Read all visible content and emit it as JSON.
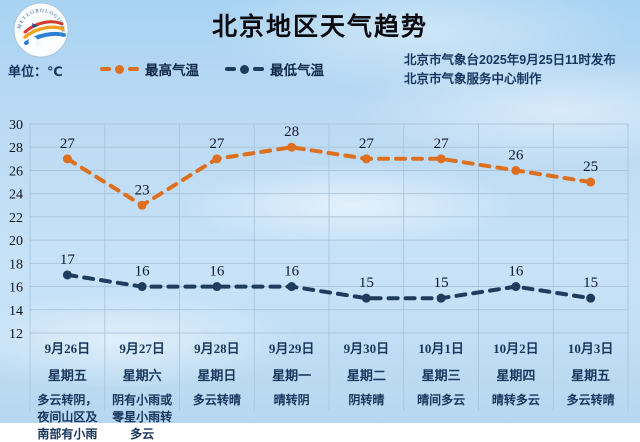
{
  "header": {
    "title": "北京地区天气趋势",
    "unit_label": "单位：℃",
    "issued_line": "北京市气象台2025年9月25日11时发布",
    "produced_line": "北京市气象服务中心制作",
    "logo_text": "METEOROLOGICAL SERVICE"
  },
  "legend": [
    {
      "label": "最高气温",
      "color": "#dd6f1f"
    },
    {
      "label": "最低气温",
      "color": "#1d3c5e"
    }
  ],
  "colors": {
    "high_line": "#dd6f1f",
    "low_line": "#1d3c5e",
    "grid": "#a9c3d9",
    "label_text": "#17365c"
  },
  "chart_data": {
    "type": "line",
    "title": "北京地区天气趋势",
    "ylabel": "℃",
    "ylim": [
      12,
      30
    ],
    "yticks": [
      30,
      28,
      26,
      24,
      22,
      20,
      18,
      16,
      14,
      12
    ],
    "grid": true,
    "legend_position": "top-left",
    "categories": [
      {
        "date": "9月26日",
        "weekday": "星期五",
        "weather": "多云转阴，夜间山区及南部有小雨"
      },
      {
        "date": "9月27日",
        "weekday": "星期六",
        "weather": "阴有小雨或零星小雨转多云"
      },
      {
        "date": "9月28日",
        "weekday": "星期日",
        "weather": "多云转晴"
      },
      {
        "date": "9月29日",
        "weekday": "星期一",
        "weather": "晴转阴"
      },
      {
        "date": "9月30日",
        "weekday": "星期二",
        "weather": "阴转晴"
      },
      {
        "date": "10月1日",
        "weekday": "星期三",
        "weather": "晴间多云"
      },
      {
        "date": "10月2日",
        "weekday": "星期四",
        "weather": "晴转多云"
      },
      {
        "date": "10月3日",
        "weekday": "星期五",
        "weather": "多云转晴"
      }
    ],
    "series": [
      {
        "name": "最高气温",
        "color": "#dd6f1f",
        "values": [
          27,
          23,
          27,
          28,
          27,
          27,
          26,
          25
        ]
      },
      {
        "name": "最低气温",
        "color": "#1d3c5e",
        "values": [
          17,
          16,
          16,
          16,
          15,
          15,
          16,
          15
        ]
      }
    ]
  }
}
